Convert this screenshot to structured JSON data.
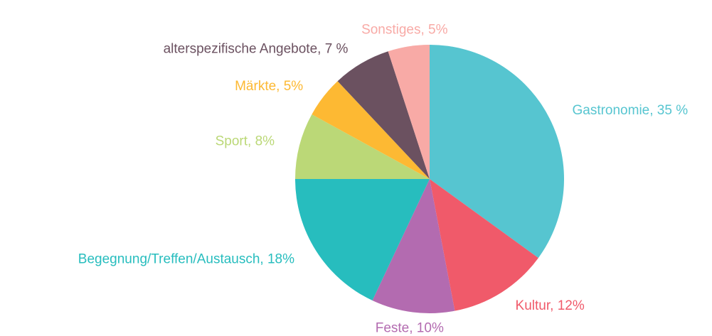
{
  "chart_data": {
    "type": "pie",
    "values": [
      35,
      12,
      10,
      18,
      8,
      5,
      7,
      5
    ],
    "value_labels": [
      "Gastronomie, 35 %",
      "Kultur, 12%",
      "Feste, 10%",
      "Begegnung/Treffen/Austausch, 18%",
      "Sport, 8%",
      "Märkte, 5%",
      "alterspezifische Angebote, 7 %",
      "Sonstiges, 5%"
    ],
    "colors": [
      "#56c5d0",
      "#f05a6a",
      "#b36bb0",
      "#27bdbe",
      "#bbd877",
      "#fdb933",
      "#6b5160",
      "#f8aaa6"
    ]
  }
}
